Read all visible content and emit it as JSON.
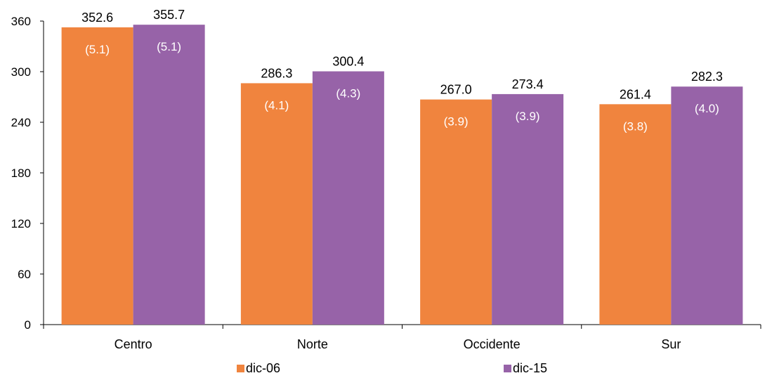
{
  "chart_data": {
    "type": "bar",
    "categories": [
      "Centro",
      "Norte",
      "Occidente",
      "Sur"
    ],
    "series": [
      {
        "name": "dic-06",
        "color": "#F0843E",
        "values": [
          352.6,
          286.3,
          267.0,
          261.4
        ],
        "value_labels": [
          "352.6",
          "286.3",
          "267.0",
          "261.4"
        ],
        "inner_labels": [
          "(5.1)",
          "(4.1)",
          "(3.9)",
          "(3.8)"
        ]
      },
      {
        "name": "dic-15",
        "color": "#9763A8",
        "values": [
          355.7,
          300.4,
          273.4,
          282.3
        ],
        "value_labels": [
          "355.7",
          "300.4",
          "273.4",
          "282.3"
        ],
        "inner_labels": [
          "(5.1)",
          "(4.3)",
          "(3.9)",
          "(4.0)"
        ]
      }
    ],
    "yticks": [
      0,
      60,
      120,
      180,
      240,
      300,
      360
    ],
    "ylim": [
      0,
      360
    ],
    "title": "",
    "xlabel": "",
    "ylabel": "",
    "grid": false,
    "legend_position": "bottom"
  }
}
